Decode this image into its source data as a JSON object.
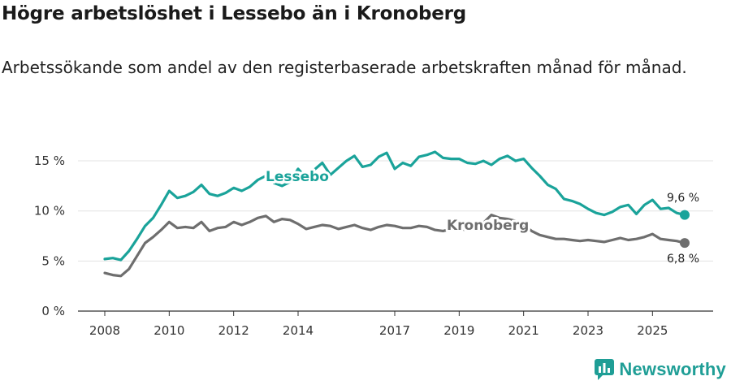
{
  "title": "Högre arbetslöshet i Lessebo än i Kronoberg",
  "subtitle": "Arbetssökande som andel av den registerbaserade arbetskraften månad för månad.",
  "brand": "Newsworthy",
  "colors": {
    "lessebo": "#1aa39a",
    "kronoberg": "#6e6e6e",
    "grid": "#e3e3e3",
    "axis": "#333333"
  },
  "chart_data": {
    "type": "line",
    "y_ticks": [
      "0 %",
      "5 %",
      "10 %",
      "15 %"
    ],
    "y_tick_values": [
      0,
      5,
      10,
      15
    ],
    "x_tick_labels": [
      "2008",
      "2010",
      "2012",
      "2014",
      "2017",
      "2019",
      "2021",
      "2023",
      "2025"
    ],
    "x_tick_values": [
      2008,
      2010,
      2012,
      2014,
      2017,
      2019,
      2021,
      2023,
      2025
    ],
    "ylim": [
      0,
      16
    ],
    "series": [
      {
        "name": "Lessebo",
        "label": "Lessebo",
        "end_label": "9,6 %",
        "x": [
          2008.0,
          2008.25,
          2008.5,
          2008.75,
          2009.0,
          2009.25,
          2009.5,
          2009.75,
          2010.0,
          2010.25,
          2010.5,
          2010.75,
          2011.0,
          2011.25,
          2011.5,
          2011.75,
          2012.0,
          2012.25,
          2012.5,
          2012.75,
          2013.0,
          2013.25,
          2013.5,
          2013.75,
          2014.0,
          2014.25,
          2014.5,
          2014.75,
          2015.0,
          2015.25,
          2015.5,
          2015.75,
          2016.0,
          2016.25,
          2016.5,
          2016.75,
          2017.0,
          2017.25,
          2017.5,
          2017.75,
          2018.0,
          2018.25,
          2018.5,
          2018.75,
          2019.0,
          2019.25,
          2019.5,
          2019.75,
          2020.0,
          2020.25,
          2020.5,
          2020.75,
          2021.0,
          2021.25,
          2021.5,
          2021.75,
          2022.0,
          2022.25,
          2022.5,
          2022.75,
          2023.0,
          2023.25,
          2023.5,
          2023.75,
          2024.0,
          2024.25,
          2024.5,
          2024.75,
          2025.0,
          2025.25,
          2025.5,
          2025.75,
          2026.0
        ],
        "values": [
          5.2,
          5.3,
          5.1,
          6.0,
          7.2,
          8.5,
          9.3,
          10.6,
          12.0,
          11.3,
          11.5,
          11.9,
          12.6,
          11.7,
          11.5,
          11.8,
          12.3,
          12.0,
          12.4,
          13.1,
          13.5,
          12.8,
          12.5,
          12.9,
          14.2,
          13.3,
          14.1,
          14.8,
          13.6,
          14.3,
          15.0,
          15.5,
          14.4,
          14.6,
          15.4,
          15.8,
          14.2,
          14.8,
          14.5,
          15.4,
          15.6,
          15.9,
          15.3,
          15.2,
          15.2,
          14.8,
          14.7,
          15.0,
          14.6,
          15.2,
          15.5,
          15.0,
          15.2,
          14.3,
          13.5,
          12.6,
          12.2,
          11.2,
          11.0,
          10.7,
          10.2,
          9.8,
          9.6,
          9.9,
          10.4,
          10.6,
          9.7,
          10.6,
          11.1,
          10.2,
          10.3,
          9.8,
          9.6
        ]
      },
      {
        "name": "Kronoberg",
        "label": "Kronoberg",
        "end_label": "6,8 %",
        "x": [
          2008.0,
          2008.25,
          2008.5,
          2008.75,
          2009.0,
          2009.25,
          2009.5,
          2009.75,
          2010.0,
          2010.25,
          2010.5,
          2010.75,
          2011.0,
          2011.25,
          2011.5,
          2011.75,
          2012.0,
          2012.25,
          2012.5,
          2012.75,
          2013.0,
          2013.25,
          2013.5,
          2013.75,
          2014.0,
          2014.25,
          2014.5,
          2014.75,
          2015.0,
          2015.25,
          2015.5,
          2015.75,
          2016.0,
          2016.25,
          2016.5,
          2016.75,
          2017.0,
          2017.25,
          2017.5,
          2017.75,
          2018.0,
          2018.25,
          2018.5,
          2018.75,
          2019.0,
          2019.25,
          2019.5,
          2019.75,
          2020.0,
          2020.25,
          2020.5,
          2020.75,
          2021.0,
          2021.25,
          2021.5,
          2021.75,
          2022.0,
          2022.25,
          2022.5,
          2022.75,
          2023.0,
          2023.25,
          2023.5,
          2023.75,
          2024.0,
          2024.25,
          2024.5,
          2024.75,
          2025.0,
          2025.25,
          2025.5,
          2025.75,
          2026.0
        ],
        "values": [
          3.8,
          3.6,
          3.5,
          4.2,
          5.5,
          6.8,
          7.4,
          8.1,
          8.9,
          8.3,
          8.4,
          8.3,
          8.9,
          8.0,
          8.3,
          8.4,
          8.9,
          8.6,
          8.9,
          9.3,
          9.5,
          8.9,
          9.2,
          9.1,
          8.7,
          8.2,
          8.4,
          8.6,
          8.5,
          8.2,
          8.4,
          8.6,
          8.3,
          8.1,
          8.4,
          8.6,
          8.5,
          8.3,
          8.3,
          8.5,
          8.4,
          8.1,
          8.0,
          8.2,
          8.2,
          8.1,
          8.2,
          8.8,
          9.6,
          9.3,
          9.2,
          9.0,
          8.6,
          8.0,
          7.6,
          7.4,
          7.2,
          7.2,
          7.1,
          7.0,
          7.1,
          7.0,
          6.9,
          7.1,
          7.3,
          7.1,
          7.2,
          7.4,
          7.7,
          7.2,
          7.1,
          7.0,
          6.8
        ]
      }
    ]
  }
}
